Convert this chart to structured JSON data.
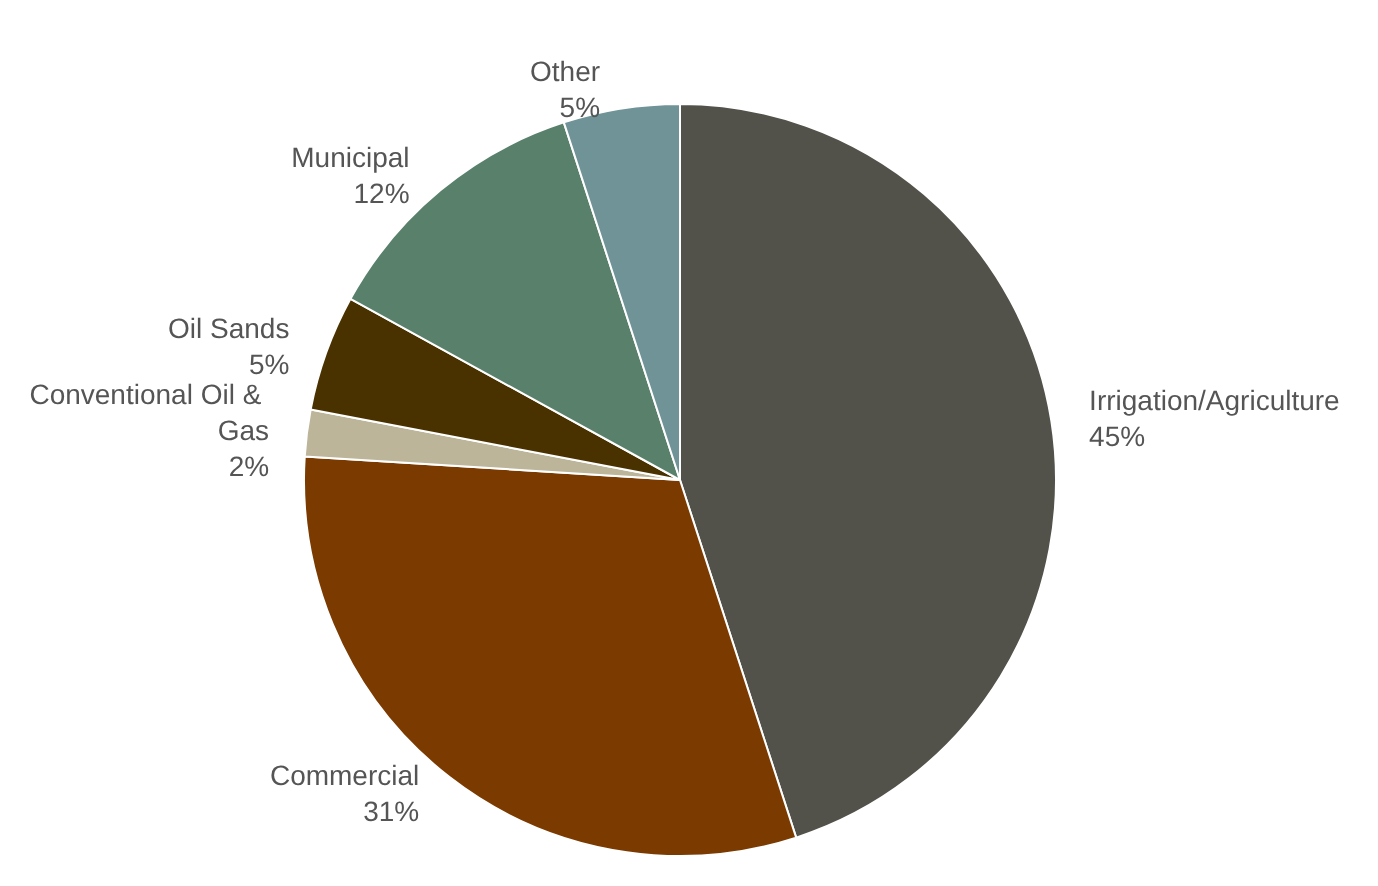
{
  "chart_data": {
    "type": "pie",
    "categories": [
      "Irrigation/Agriculture",
      "Commercial",
      "Conventional Oil & Gas",
      "Oil Sands",
      "Municipal",
      "Other"
    ],
    "values": [
      45,
      31,
      2,
      5,
      12,
      5
    ],
    "value_labels": [
      "45%",
      "31%",
      "2%",
      "5%",
      "12%",
      "5%"
    ],
    "colors": [
      "#52524a",
      "#7a3a00",
      "#bdb59a",
      "#4a3200",
      "#58806a",
      "#6f9396"
    ]
  }
}
